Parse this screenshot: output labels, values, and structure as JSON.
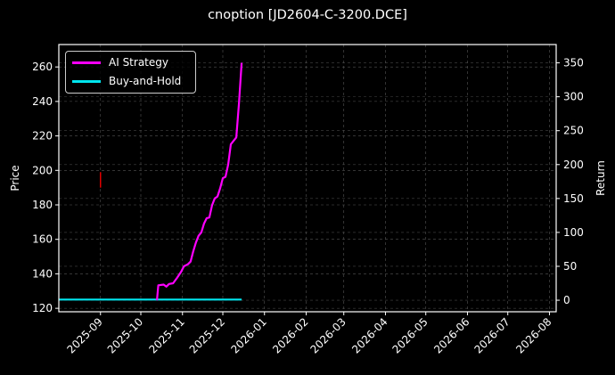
{
  "chart_data": {
    "type": "line",
    "title": "cnoption [JD2604-C-3200.DCE]",
    "xlabel": "",
    "ylabel_left": "Price",
    "ylabel_right": "Return",
    "ylim_left": [
      118,
      273
    ],
    "ylim_right": [
      -17,
      377
    ],
    "grid": true,
    "legend_position": "upper left",
    "x_tick_labels": [
      "2025-09",
      "2025-10",
      "2025-11",
      "2025-12",
      "2026-01",
      "2026-02",
      "2026-03",
      "2026-04",
      "2026-05",
      "2026-06",
      "2026-07",
      "2026-08"
    ],
    "y_left_ticks": [
      120,
      140,
      160,
      180,
      200,
      220,
      240,
      260
    ],
    "y_right_ticks": [
      0,
      50,
      100,
      150,
      200,
      250,
      300,
      350
    ],
    "series": [
      {
        "name": "AI Strategy",
        "axis": "right",
        "color": "#ff00ff",
        "x": [
          "2025-10-13",
          "2025-10-14",
          "2025-10-18",
          "2025-10-20",
          "2025-10-22",
          "2025-10-25",
          "2025-10-28",
          "2025-10-31",
          "2025-11-02",
          "2025-11-05",
          "2025-11-07",
          "2025-11-09",
          "2025-11-11",
          "2025-11-13",
          "2025-11-15",
          "2025-11-17",
          "2025-11-19",
          "2025-11-21",
          "2025-11-23",
          "2025-11-25",
          "2025-11-27",
          "2025-11-29",
          "2025-12-01",
          "2025-12-03",
          "2025-12-05",
          "2025-12-07",
          "2025-12-09",
          "2025-12-11",
          "2025-12-13",
          "2025-12-15"
        ],
        "values": [
          0,
          22,
          23,
          20,
          24,
          25,
          33,
          42,
          50,
          53,
          57,
          72,
          85,
          95,
          100,
          113,
          121,
          122,
          140,
          150,
          153,
          165,
          180,
          182,
          200,
          230,
          235,
          240,
          290,
          350
        ]
      },
      {
        "name": "Buy-and-Hold",
        "axis": "right",
        "color": "#00e5ee",
        "x": [
          "2025-08-01",
          "2025-12-15"
        ],
        "values": [
          1,
          1
        ]
      }
    ],
    "annotations": [
      {
        "type": "red-vertical-mark",
        "x": "2025-09-01",
        "price_range": [
          190,
          199
        ]
      }
    ]
  },
  "legend": {
    "items": [
      {
        "label": "AI Strategy",
        "color": "#ff00ff"
      },
      {
        "label": "Buy-and-Hold",
        "color": "#00e5ee"
      }
    ]
  }
}
